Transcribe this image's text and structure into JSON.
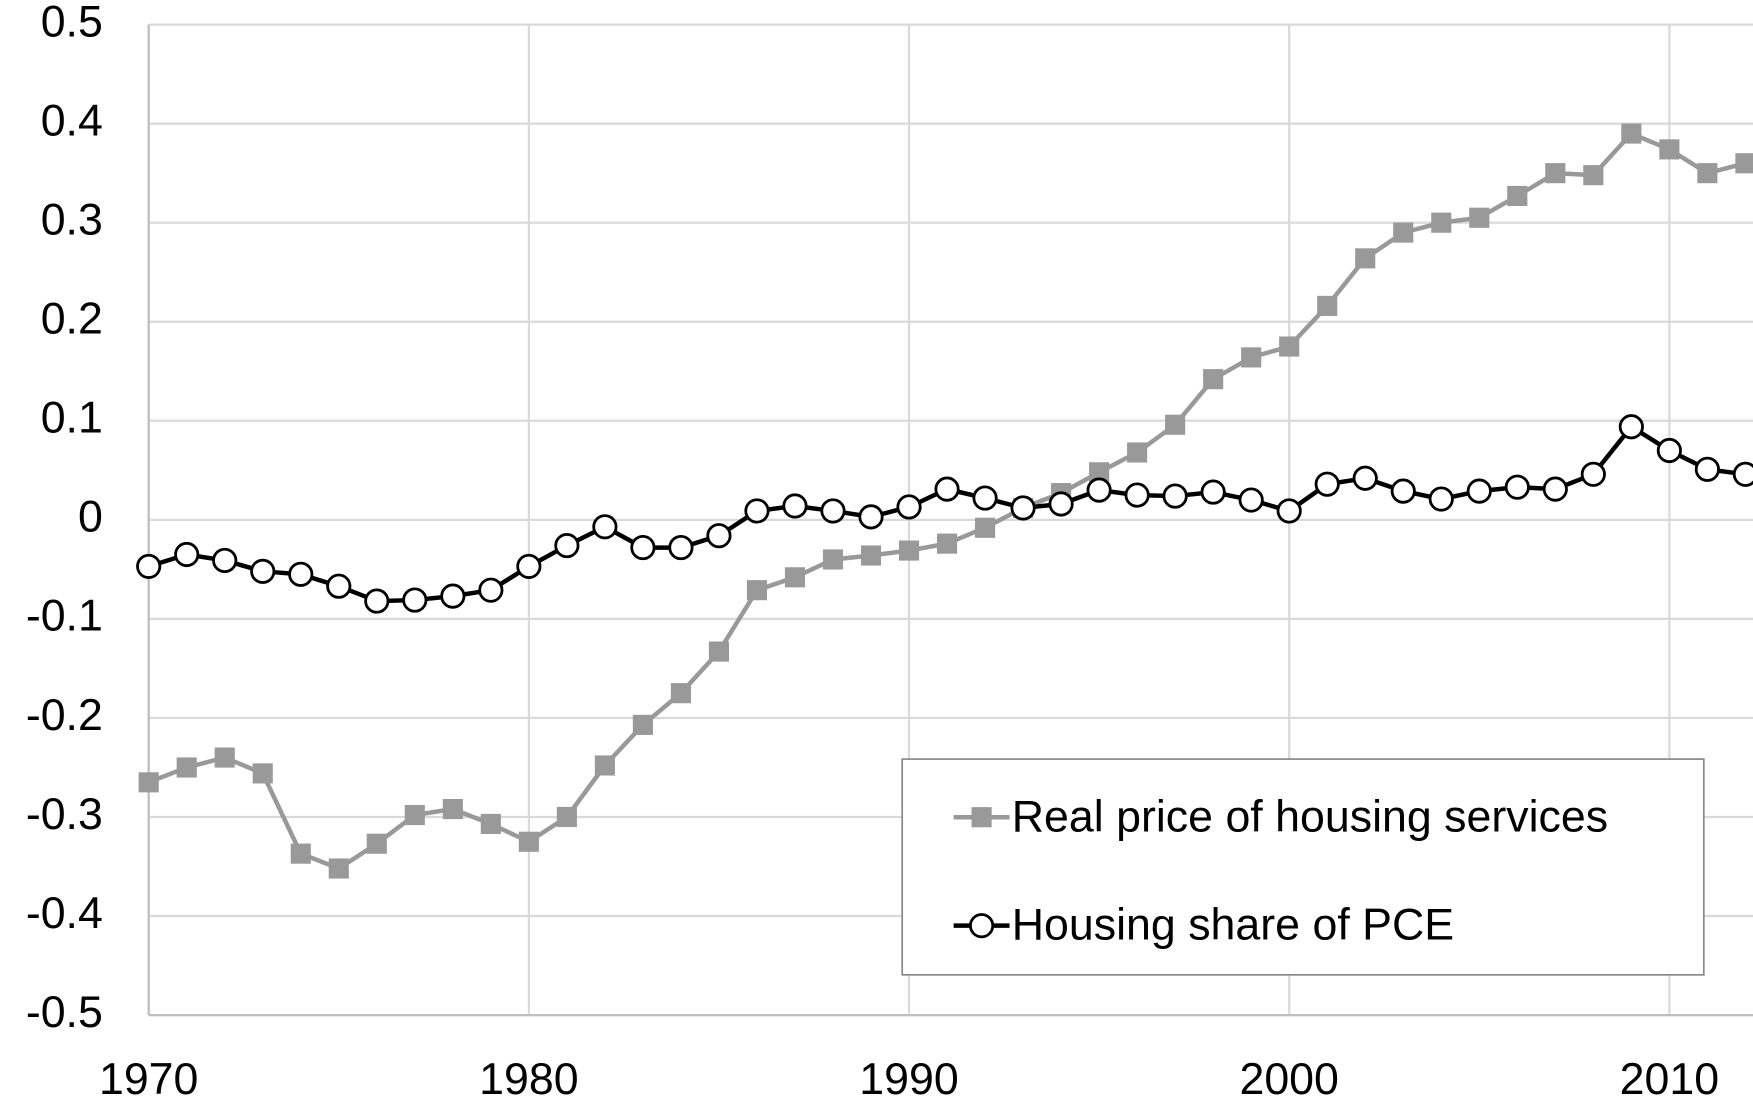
{
  "chart_data": {
    "type": "line",
    "x": [
      1970,
      1971,
      1972,
      1973,
      1974,
      1975,
      1976,
      1977,
      1978,
      1979,
      1980,
      1981,
      1982,
      1983,
      1984,
      1985,
      1986,
      1987,
      1988,
      1989,
      1990,
      1991,
      1992,
      1993,
      1994,
      1995,
      1996,
      1997,
      1998,
      1999,
      2000,
      2001,
      2002,
      2003,
      2004,
      2005,
      2006,
      2007,
      2008,
      2009,
      2010,
      2011,
      2012
    ],
    "series": [
      {
        "name": "Real price of housing services",
        "color": "#999999",
        "marker": "square",
        "values": [
          -0.265,
          -0.25,
          -0.24,
          -0.256,
          -0.337,
          -0.352,
          -0.327,
          -0.298,
          -0.292,
          -0.307,
          -0.325,
          -0.3,
          -0.248,
          -0.207,
          -0.175,
          -0.133,
          -0.071,
          -0.058,
          -0.04,
          -0.036,
          -0.031,
          -0.024,
          -0.008,
          0.012,
          0.027,
          0.048,
          0.068,
          0.096,
          0.142,
          0.164,
          0.175,
          0.216,
          0.264,
          0.29,
          0.3,
          0.305,
          0.327,
          0.35,
          0.348,
          0.39,
          0.374,
          0.35,
          0.36
        ]
      },
      {
        "name": "Housing share of PCE",
        "color": "#000000",
        "marker": "circle",
        "values": [
          -0.047,
          -0.035,
          -0.041,
          -0.052,
          -0.055,
          -0.067,
          -0.082,
          -0.081,
          -0.077,
          -0.071,
          -0.047,
          -0.026,
          -0.007,
          -0.028,
          -0.028,
          -0.016,
          0.009,
          0.014,
          0.009,
          0.003,
          0.013,
          0.031,
          0.022,
          0.012,
          0.016,
          0.03,
          0.025,
          0.024,
          0.028,
          0.02,
          0.009,
          0.036,
          0.042,
          0.029,
          0.021,
          0.029,
          0.033,
          0.031,
          0.046,
          0.094,
          0.07,
          0.051,
          0.046
        ]
      }
    ],
    "xlim": [
      1970,
      2012.2
    ],
    "xticks": [
      1970,
      1980,
      1990,
      2000,
      2010
    ],
    "ylim": [
      -0.5,
      0.5
    ],
    "yticks": [
      0.5,
      0.4,
      0.3,
      0.2,
      0.1,
      0,
      -0.1,
      -0.2,
      -0.3,
      -0.4,
      -0.5
    ],
    "grid": true,
    "legend": "lower right"
  }
}
